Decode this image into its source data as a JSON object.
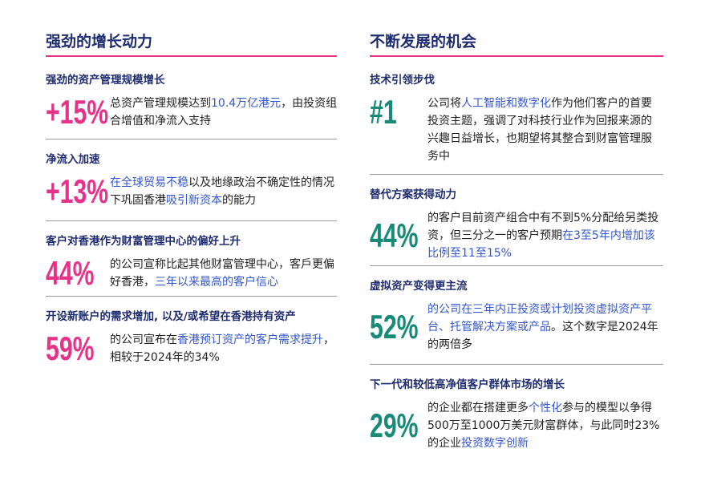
{
  "columns": [
    {
      "title": "强劲的增长动力",
      "stat_color": "#e6338a",
      "items": [
        {
          "heading": "强劲的资产管理规模增长",
          "stat": "+15%",
          "body": [
            {
              "text": "总资产管理规模达到"
            },
            {
              "text": "10.4万亿港元",
              "color": "#3557c8"
            },
            {
              "text": "，由投资组合增值和净流入支持"
            }
          ]
        },
        {
          "heading": "净流入加速",
          "stat": "+13%",
          "body": [
            {
              "text": "在全球贸易不稳",
              "color": "#3557c8"
            },
            {
              "text": "以及地缘政治不确定性的情况下巩固香港"
            },
            {
              "text": "吸引新资本",
              "color": "#3557c8"
            },
            {
              "text": "的能力"
            }
          ]
        },
        {
          "heading": "客户对香港作为财富管理中心的偏好上升",
          "stat": "44%",
          "body": [
            {
              "text": "的公司宣称比起其他财富管理中心，客戶更偏好香港，"
            },
            {
              "text": "三年以来最高的客户信心",
              "color": "#3557c8"
            }
          ]
        },
        {
          "heading": "开设新账户的需求增加, 以及/或希望在香港持有资产",
          "stat": "59%",
          "body": [
            {
              "text": "的公司宣布在"
            },
            {
              "text": "香港预订资产的客户需求提升",
              "color": "#3557c8"
            },
            {
              "text": "，相较于2024年的34%"
            }
          ]
        }
      ]
    },
    {
      "title": "不断发展的机会",
      "stat_color": "#178a78",
      "items": [
        {
          "heading": "技术引领步伐",
          "stat": "#1",
          "body": [
            {
              "text": "公司将"
            },
            {
              "text": "人工智能和数字化",
              "color": "#3557c8"
            },
            {
              "text": "作为他们客户的首要投资主题，强调了对科技行业作为回报来源的兴趣日益增长，也期望将其整合到财富管理服务中"
            }
          ]
        },
        {
          "heading": "替代方案获得动力",
          "stat": "44%",
          "body": [
            {
              "text": "的客户目前资产组合中有不到5%分配给另类投资，但三分之一的客户预期"
            },
            {
              "text": "在3至5年内增加该比例至11至15%",
              "color": "#3557c8"
            }
          ]
        },
        {
          "heading": "虚拟资产变得更主流",
          "stat": "52%",
          "body": [
            {
              "text": "的公司在三年内正投资或计划投资虚拟资产平台、托管解决方案或产品",
              "color": "#3557c8"
            },
            {
              "text": "。这个数字是2024年的两倍多"
            }
          ]
        },
        {
          "heading": "下一代和较低高净值客户群体市场的增长",
          "stat": "29%",
          "body": [
            {
              "text": "的企业都在搭建更多"
            },
            {
              "text": "个性化",
              "color": "#3557c8"
            },
            {
              "text": "参与的模型以争得500万至1000万美元财富群体，与此同时23%的企业"
            },
            {
              "text": "投资数字创新",
              "color": "#3557c8"
            }
          ]
        }
      ]
    }
  ]
}
